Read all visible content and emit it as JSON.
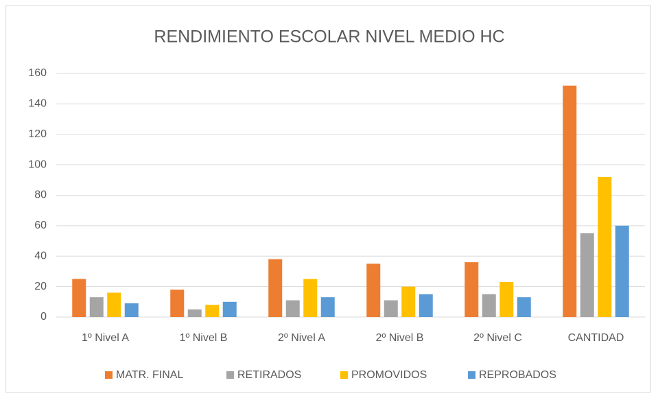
{
  "chart_data": {
    "type": "bar",
    "title": "RENDIMIENTO ESCOLAR NIVEL MEDIO HC",
    "categories": [
      "1º Nivel A",
      "1º Nivel B",
      "2º Nivel  A",
      "2º Nivel B",
      "2º Nivel C",
      "CANTIDAD"
    ],
    "series": [
      {
        "name": "MATR. FINAL",
        "color": "#ed7d31",
        "values": [
          25,
          18,
          38,
          35,
          36,
          152
        ]
      },
      {
        "name": "RETIRADOS",
        "color": "#a5a5a5",
        "values": [
          13,
          5,
          11,
          11,
          15,
          55
        ]
      },
      {
        "name": "PROMOVIDOS",
        "color": "#ffc000",
        "values": [
          16,
          8,
          25,
          20,
          23,
          92
        ]
      },
      {
        "name": "REPROBADOS",
        "color": "#5b9bd5",
        "values": [
          9,
          10,
          13,
          15,
          13,
          60
        ]
      }
    ],
    "ylim": [
      0,
      160
    ],
    "yticks": [
      0,
      20,
      40,
      60,
      80,
      100,
      120,
      140,
      160
    ],
    "grid": true,
    "legend": "bottom"
  }
}
